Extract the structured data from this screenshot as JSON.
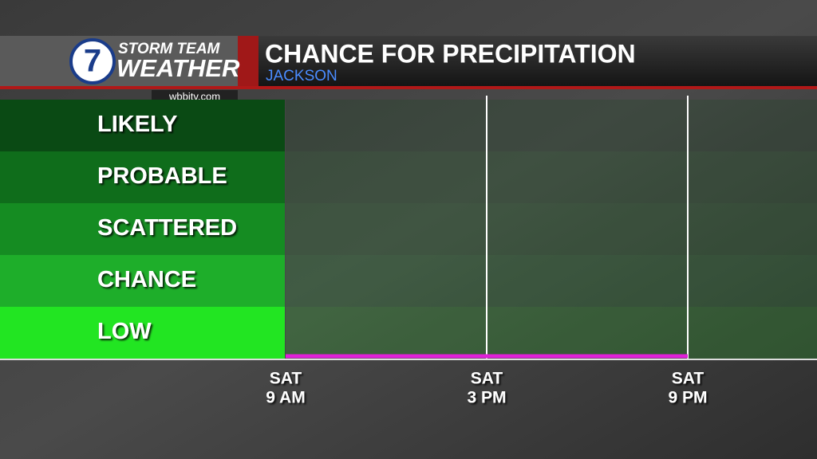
{
  "logo": {
    "number": "7",
    "line1": "STORM TEAM",
    "line2": "WEATHER",
    "site": "wbbjtv.com"
  },
  "chart_data": {
    "type": "line",
    "title": "CHANCE FOR PRECIPITATION",
    "subtitle": "JACKSON",
    "levels": [
      "LOW",
      "CHANCE",
      "SCATTERED",
      "PROBABLE",
      "LIKELY"
    ],
    "level_colors": [
      "#22e522",
      "#1eae2a",
      "#158c22",
      "#0f6d1b",
      "#0a4a14"
    ],
    "ylim": [
      0,
      5
    ],
    "x": [
      [
        "SAT",
        "9 AM"
      ],
      [
        "SAT",
        "3 PM"
      ],
      [
        "SAT",
        "9 PM"
      ]
    ],
    "series": [
      {
        "color": "#e020d8",
        "values": [
          0,
          0,
          0
        ]
      }
    ]
  }
}
